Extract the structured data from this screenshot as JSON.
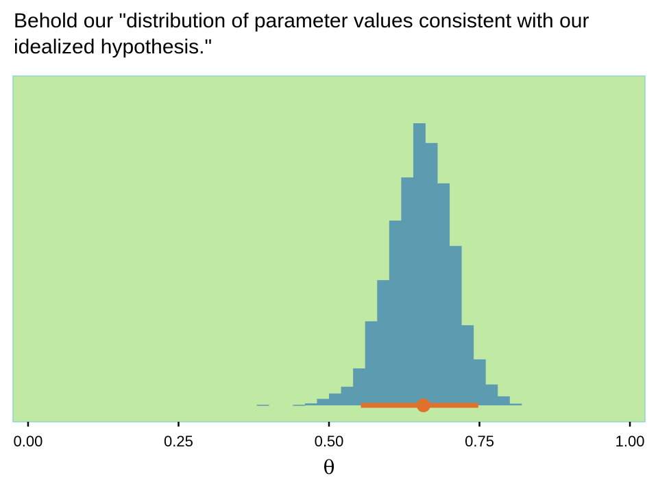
{
  "colors": {
    "panel_background": "#c0e9a4",
    "panel_border": "#8fd6d0",
    "histogram_fill": "#5d9cb0",
    "interval_color": "#e0702a"
  },
  "chart_data": {
    "type": "bar",
    "title": "Behold our \"distribution of parameter values consistent with our idealized hypothesis.\"",
    "xlabel": "θ",
    "ylabel": "",
    "xlim": [
      -0.025,
      1.025
    ],
    "ylim": [
      0,
      1.12
    ],
    "xticks": [
      0.0,
      0.25,
      0.5,
      0.75,
      1.0
    ],
    "xtick_labels": [
      "0.00",
      "0.25",
      "0.50",
      "0.75",
      "1.00"
    ],
    "yaxis_visible": false,
    "grid": false,
    "histogram": {
      "bin_width": 0.02,
      "bins": [
        {
          "x": 0.39,
          "density": 0.002
        },
        {
          "x": 0.45,
          "density": 0.002
        },
        {
          "x": 0.47,
          "density": 0.007
        },
        {
          "x": 0.49,
          "density": 0.023
        },
        {
          "x": 0.51,
          "density": 0.042
        },
        {
          "x": 0.53,
          "density": 0.066
        },
        {
          "x": 0.55,
          "density": 0.131
        },
        {
          "x": 0.57,
          "density": 0.298
        },
        {
          "x": 0.59,
          "density": 0.444
        },
        {
          "x": 0.61,
          "density": 0.655
        },
        {
          "x": 0.63,
          "density": 0.808
        },
        {
          "x": 0.65,
          "density": 1.0
        },
        {
          "x": 0.67,
          "density": 0.93
        },
        {
          "x": 0.69,
          "density": 0.787
        },
        {
          "x": 0.71,
          "density": 0.565
        },
        {
          "x": 0.73,
          "density": 0.284
        },
        {
          "x": 0.75,
          "density": 0.163
        },
        {
          "x": 0.77,
          "density": 0.074
        },
        {
          "x": 0.79,
          "density": 0.032
        },
        {
          "x": 0.81,
          "density": 0.006
        }
      ]
    },
    "point_interval": {
      "point": 0.657,
      "lower": 0.553,
      "upper": 0.748
    }
  }
}
